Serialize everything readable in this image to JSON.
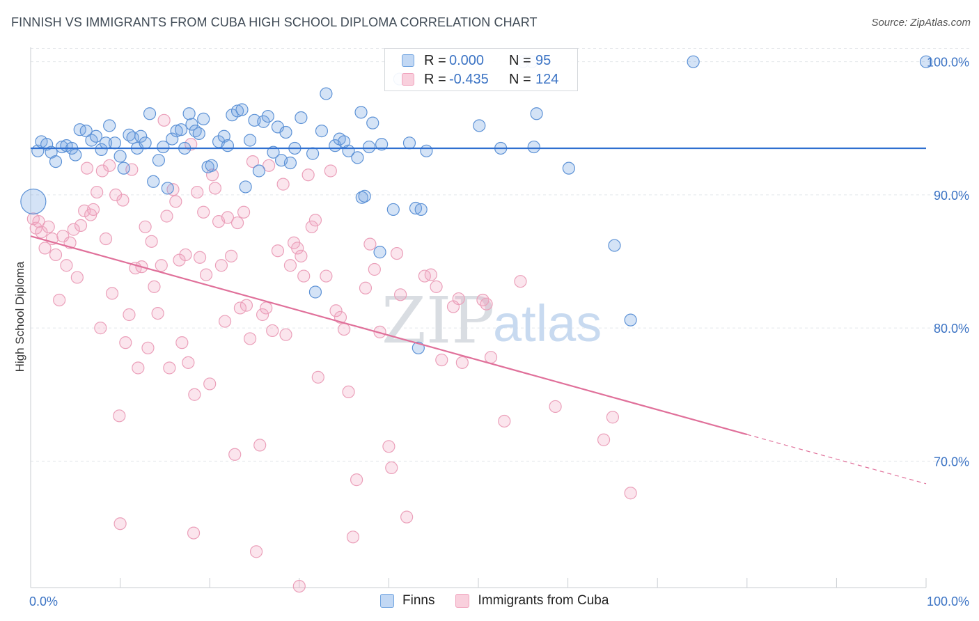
{
  "title": "FINNISH VS IMMIGRANTS FROM CUBA HIGH SCHOOL DIPLOMA CORRELATION CHART",
  "source": "Source: ZipAtlas.com",
  "watermark": {
    "zip": "ZIP",
    "atlas": "atlas"
  },
  "legend_top": [
    {
      "r_label": "R =",
      "r_value": "0.000",
      "n_label": "N =",
      "n_value": "95"
    },
    {
      "r_label": "R =",
      "r_value": "-0.435",
      "n_label": "N =",
      "n_value": "124"
    }
  ],
  "legend_bottom": [
    "Finns",
    "Immigrants from Cuba"
  ],
  "chart_data": {
    "type": "scatter",
    "title": "FINNISH VS IMMIGRANTS FROM CUBA HIGH SCHOOL DIPLOMA CORRELATION CHART",
    "xlabel": "",
    "ylabel": "High School Diploma",
    "xlim": [
      0,
      100
    ],
    "ylim": [
      60.5,
      101.5
    ],
    "x_tick_labels": [
      "0.0%",
      "100.0%"
    ],
    "y_ticks": [
      70,
      80,
      90,
      100
    ],
    "y_tick_labels": [
      "70.0%",
      "80.0%",
      "90.0%",
      "100.0%"
    ],
    "grid": true,
    "legend_position": "top-center",
    "colors": {
      "finns": "#6fa3e0",
      "cuba": "#f0a3bd",
      "finns_line": "#2f6fd0",
      "cuba_line": "#e0709a"
    },
    "series": [
      {
        "name": "Finns",
        "r": 0.0,
        "n": 95,
        "trend": {
          "x": [
            0,
            100
          ],
          "y": [
            93.5,
            93.5
          ]
        },
        "points": [
          [
            0.8,
            93.3
          ],
          [
            1.2,
            94.0
          ],
          [
            1.8,
            93.8
          ],
          [
            2.3,
            93.2
          ],
          [
            2.8,
            92.5
          ],
          [
            3.5,
            93.6
          ],
          [
            4.0,
            93.7
          ],
          [
            4.6,
            93.5
          ],
          [
            5.0,
            93.0
          ],
          [
            5.5,
            94.9
          ],
          [
            6.2,
            94.8
          ],
          [
            6.8,
            94.1
          ],
          [
            7.3,
            94.4
          ],
          [
            7.9,
            93.4
          ],
          [
            8.4,
            93.9
          ],
          [
            8.8,
            95.2
          ],
          [
            9.4,
            93.9
          ],
          [
            10.0,
            92.9
          ],
          [
            10.4,
            92.0
          ],
          [
            11.0,
            94.5
          ],
          [
            11.4,
            94.3
          ],
          [
            11.9,
            93.5
          ],
          [
            12.3,
            94.4
          ],
          [
            12.8,
            93.9
          ],
          [
            13.3,
            96.1
          ],
          [
            13.7,
            91.0
          ],
          [
            14.3,
            92.6
          ],
          [
            14.8,
            93.6
          ],
          [
            15.3,
            90.5
          ],
          [
            15.8,
            94.2
          ],
          [
            16.3,
            94.8
          ],
          [
            16.8,
            94.9
          ],
          [
            17.2,
            93.5
          ],
          [
            17.7,
            96.1
          ],
          [
            18.0,
            95.3
          ],
          [
            18.4,
            94.8
          ],
          [
            18.8,
            94.6
          ],
          [
            19.3,
            95.7
          ],
          [
            19.8,
            92.1
          ],
          [
            20.2,
            92.2
          ],
          [
            21.0,
            94.0
          ],
          [
            21.6,
            94.4
          ],
          [
            22.0,
            93.7
          ],
          [
            22.5,
            96.0
          ],
          [
            23.1,
            96.3
          ],
          [
            23.6,
            96.4
          ],
          [
            24.0,
            90.6
          ],
          [
            24.5,
            94.1
          ],
          [
            25.0,
            95.6
          ],
          [
            25.5,
            91.8
          ],
          [
            26.0,
            95.5
          ],
          [
            26.5,
            95.9
          ],
          [
            27.1,
            93.2
          ],
          [
            27.6,
            95.1
          ],
          [
            28.0,
            92.6
          ],
          [
            28.5,
            94.7
          ],
          [
            29.0,
            92.4
          ],
          [
            29.5,
            93.5
          ],
          [
            30.2,
            95.8
          ],
          [
            31.5,
            93.1
          ],
          [
            32.5,
            94.8
          ],
          [
            33.0,
            97.6
          ],
          [
            34.0,
            93.7
          ],
          [
            34.5,
            94.2
          ],
          [
            35.0,
            94.0
          ],
          [
            35.5,
            93.3
          ],
          [
            36.5,
            92.8
          ],
          [
            37.0,
            89.8
          ],
          [
            37.8,
            93.6
          ],
          [
            38.2,
            95.4
          ],
          [
            39.2,
            93.8
          ],
          [
            36.9,
            96.2
          ],
          [
            39.0,
            85.7
          ],
          [
            40.5,
            88.9
          ],
          [
            41.2,
            98.7
          ],
          [
            42.3,
            93.9
          ],
          [
            43.0,
            89.0
          ],
          [
            43.6,
            88.9
          ],
          [
            44.2,
            93.3
          ],
          [
            43.3,
            78.5
          ],
          [
            31.8,
            82.7
          ],
          [
            50.1,
            95.2
          ],
          [
            52.5,
            93.5
          ],
          [
            56.5,
            96.1
          ],
          [
            56.2,
            93.6
          ],
          [
            60.1,
            92.0
          ],
          [
            65.2,
            86.2
          ],
          [
            67.0,
            80.6
          ],
          [
            74.0,
            100.0
          ],
          [
            100.0,
            100.0
          ],
          [
            56.0,
            100.0
          ],
          [
            55.0,
            100.0
          ],
          [
            0.3,
            89.5
          ],
          [
            37.3,
            89.9
          ]
        ]
      },
      {
        "name": "Immigrants from Cuba",
        "r": -0.435,
        "n": 124,
        "trend": {
          "x": [
            0,
            80
          ],
          "y": [
            86.9,
            72.0
          ],
          "dashed_x": [
            80,
            100
          ],
          "dashed_y": [
            72.0,
            68.3
          ]
        },
        "points": [
          [
            0.3,
            88.2
          ],
          [
            0.6,
            87.5
          ],
          [
            0.9,
            88.0
          ],
          [
            1.2,
            87.2
          ],
          [
            1.6,
            86.0
          ],
          [
            2.0,
            87.6
          ],
          [
            2.4,
            86.7
          ],
          [
            2.8,
            85.5
          ],
          [
            3.2,
            82.1
          ],
          [
            3.6,
            86.9
          ],
          [
            4.0,
            84.7
          ],
          [
            4.4,
            86.4
          ],
          [
            4.8,
            87.4
          ],
          [
            5.2,
            83.8
          ],
          [
            5.6,
            87.7
          ],
          [
            6.0,
            88.8
          ],
          [
            6.3,
            92.0
          ],
          [
            6.7,
            88.5
          ],
          [
            7.0,
            88.9
          ],
          [
            7.4,
            90.2
          ],
          [
            7.8,
            80.0
          ],
          [
            8.0,
            91.8
          ],
          [
            8.4,
            86.7
          ],
          [
            8.8,
            92.2
          ],
          [
            9.1,
            82.6
          ],
          [
            9.5,
            90.0
          ],
          [
            9.9,
            73.4
          ],
          [
            10.3,
            89.6
          ],
          [
            10.6,
            78.9
          ],
          [
            11.0,
            81.0
          ],
          [
            11.3,
            91.9
          ],
          [
            11.7,
            84.5
          ],
          [
            12.0,
            77.0
          ],
          [
            12.4,
            84.6
          ],
          [
            12.8,
            87.6
          ],
          [
            13.1,
            78.5
          ],
          [
            13.5,
            86.5
          ],
          [
            13.8,
            83.1
          ],
          [
            14.2,
            81.1
          ],
          [
            14.6,
            84.7
          ],
          [
            14.9,
            95.6
          ],
          [
            15.2,
            88.4
          ],
          [
            15.5,
            77.0
          ],
          [
            15.9,
            90.4
          ],
          [
            16.2,
            89.5
          ],
          [
            16.6,
            85.1
          ],
          [
            16.9,
            78.9
          ],
          [
            17.3,
            85.5
          ],
          [
            17.6,
            77.4
          ],
          [
            17.9,
            93.8
          ],
          [
            18.3,
            75.0
          ],
          [
            18.6,
            90.2
          ],
          [
            18.9,
            85.3
          ],
          [
            19.3,
            88.7
          ],
          [
            19.6,
            84.0
          ],
          [
            20.0,
            75.8
          ],
          [
            20.3,
            91.5
          ],
          [
            20.6,
            90.5
          ],
          [
            21.0,
            88.0
          ],
          [
            21.3,
            84.7
          ],
          [
            21.7,
            80.5
          ],
          [
            22.0,
            88.3
          ],
          [
            22.4,
            85.4
          ],
          [
            22.8,
            70.5
          ],
          [
            23.1,
            87.9
          ],
          [
            23.4,
            81.5
          ],
          [
            23.8,
            88.7
          ],
          [
            24.1,
            81.7
          ],
          [
            24.5,
            79.2
          ],
          [
            24.8,
            92.5
          ],
          [
            25.2,
            63.2
          ],
          [
            25.6,
            71.2
          ],
          [
            25.9,
            81.0
          ],
          [
            26.3,
            81.5
          ],
          [
            26.6,
            92.2
          ],
          [
            27.0,
            79.8
          ],
          [
            27.6,
            85.8
          ],
          [
            28.2,
            90.8
          ],
          [
            28.5,
            79.5
          ],
          [
            29.0,
            84.7
          ],
          [
            29.4,
            86.4
          ],
          [
            29.8,
            86.0
          ],
          [
            30.2,
            85.4
          ],
          [
            30.5,
            83.9
          ],
          [
            31.0,
            91.5
          ],
          [
            31.4,
            87.6
          ],
          [
            31.8,
            88.1
          ],
          [
            32.1,
            76.3
          ],
          [
            33.0,
            83.9
          ],
          [
            33.5,
            91.8
          ],
          [
            34.1,
            81.3
          ],
          [
            34.6,
            80.8
          ],
          [
            35.0,
            79.9
          ],
          [
            35.5,
            75.2
          ],
          [
            36.0,
            64.3
          ],
          [
            36.4,
            68.6
          ],
          [
            37.4,
            83.0
          ],
          [
            37.9,
            86.3
          ],
          [
            38.4,
            84.4
          ],
          [
            39.0,
            79.7
          ],
          [
            40.0,
            71.1
          ],
          [
            40.3,
            69.5
          ],
          [
            40.9,
            85.6
          ],
          [
            41.3,
            82.5
          ],
          [
            42.0,
            65.8
          ],
          [
            44.0,
            83.9
          ],
          [
            44.7,
            84.0
          ],
          [
            45.3,
            83.1
          ],
          [
            45.9,
            77.6
          ],
          [
            47.2,
            81.6
          ],
          [
            47.8,
            82.2
          ],
          [
            48.2,
            77.4
          ],
          [
            50.5,
            82.1
          ],
          [
            50.9,
            81.8
          ],
          [
            51.4,
            77.8
          ],
          [
            52.9,
            73.0
          ],
          [
            54.7,
            83.5
          ],
          [
            58.6,
            74.1
          ],
          [
            64.0,
            71.6
          ],
          [
            65.0,
            73.3
          ],
          [
            67.0,
            67.6
          ],
          [
            10.0,
            65.3
          ],
          [
            18.2,
            64.6
          ],
          [
            30.0,
            60.6
          ]
        ]
      }
    ]
  }
}
